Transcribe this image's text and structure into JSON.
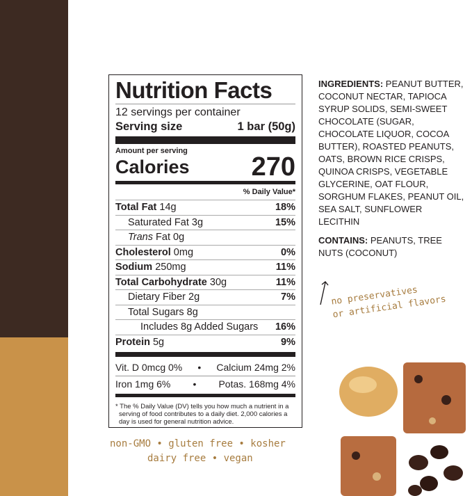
{
  "colors": {
    "dark_brown": "#3d2a22",
    "tan": "#c99249",
    "handwriting": "#a77c3f"
  },
  "label": {
    "title": "Nutrition Facts",
    "servings": "12 servings per container",
    "serving_size_label": "Serving size",
    "serving_size_value": "1 bar (50g)",
    "amount_per_serving": "Amount per serving",
    "calories_label": "Calories",
    "calories_value": "270",
    "dv_header": "% Daily Value*",
    "rows": [
      {
        "name": "Total Fat",
        "amount": "14g",
        "dv": "18%"
      },
      {
        "name": "Saturated Fat",
        "amount": "3g",
        "dv": "15%"
      },
      {
        "name": "Trans",
        "suffix": " Fat 0g",
        "dv": ""
      },
      {
        "name": "Cholesterol",
        "amount": "0mg",
        "dv": "0%"
      },
      {
        "name": "Sodium",
        "amount": "250mg",
        "dv": "11%"
      },
      {
        "name": "Total Carbohydrate",
        "amount": "30g",
        "dv": "11%"
      },
      {
        "name": "Dietary Fiber",
        "amount": "2g",
        "dv": "7%"
      },
      {
        "name": "Total Sugars",
        "amount": "8g",
        "dv": ""
      },
      {
        "name": "Includes 8g Added Sugars",
        "amount": "",
        "dv": "16%"
      },
      {
        "name": "Protein",
        "amount": "5g",
        "dv": "9%"
      }
    ],
    "vitamins": [
      {
        "left": "Vit. D 0mcg 0%",
        "right": "Calcium 24mg 2%"
      },
      {
        "left": "Iron 1mg 6%",
        "right": "Potas. 168mg 4%"
      }
    ],
    "bullet": "•",
    "footnote": "* The % Daily Value (DV) tells you how much a nutrient in a serving of food contributes to a daily diet. 2,000 calories a day is used for general nutrition advice."
  },
  "ingredients": {
    "label": "INGREDIENTS:",
    "text": "PEANUT BUTTER, COCONUT NECTAR, TAPIOCA SYRUP SOLIDS, SEMI-SWEET CHOCOLATE (SUGAR, CHOCOLATE LIQUOR, COCOA BUTTER), ROASTED PEANUTS, OATS, BROWN RICE CRISPS, QUINOA CRISPS, VEGETABLE GLYCERINE, OAT FLOUR, SORGHUM FLAKES, PEANUT OIL, SEA SALT, SUNFLOWER LECITHIN"
  },
  "contains": {
    "label": "CONTAINS:",
    "text": "PEANUTS, TREE NUTS (COCONUT)"
  },
  "note": {
    "line1": "no preservatives",
    "line2": "or artificial flavors"
  },
  "claims": {
    "line1": "non-GMO • gluten free • kosher",
    "line2": "dairy free • vegan"
  }
}
